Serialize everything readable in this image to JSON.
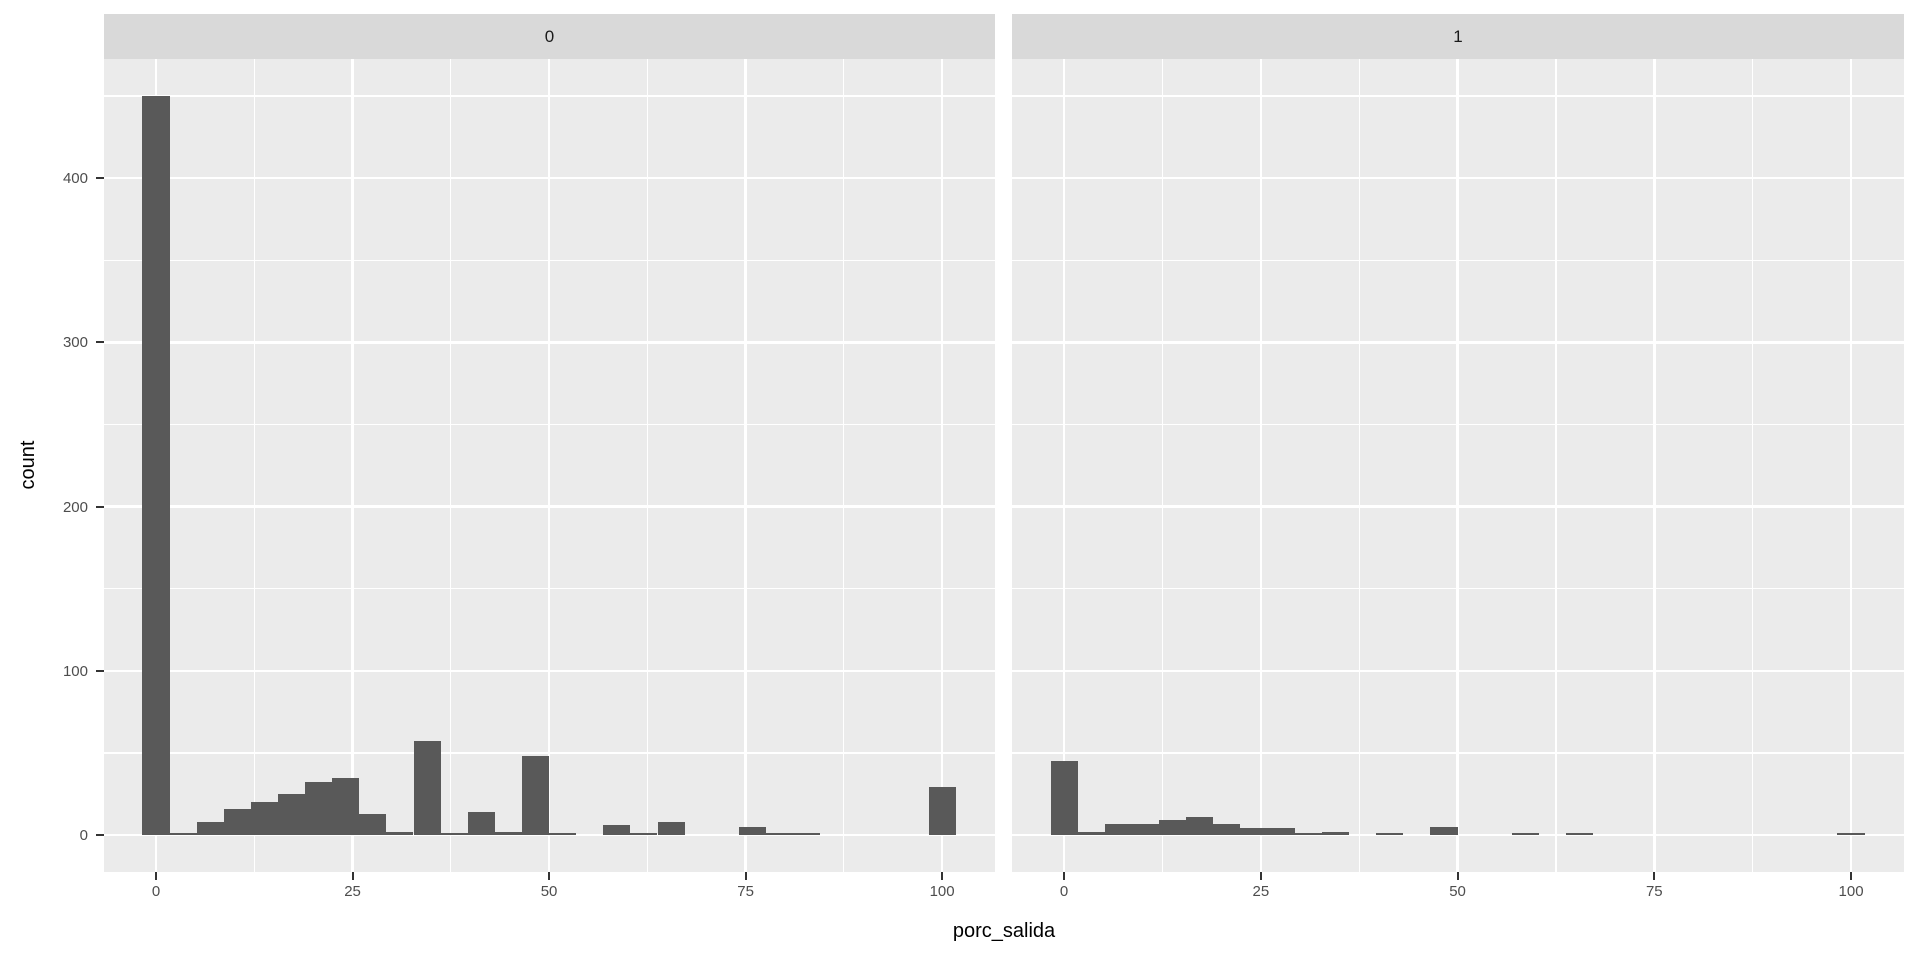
{
  "figure": {
    "background": "#ffffff"
  },
  "chart_data": {
    "type": "bar",
    "subtype": "faceted-histogram",
    "title": "",
    "xlabel": "porc_salida",
    "ylabel": "count",
    "facet_labels": [
      "0",
      "1"
    ],
    "bin_width": 3.448,
    "bin_centers": [
      0,
      3.45,
      6.9,
      10.34,
      13.79,
      17.24,
      20.69,
      24.14,
      27.59,
      31.03,
      34.48,
      37.93,
      41.38,
      44.83,
      48.28,
      51.72,
      55.17,
      58.62,
      62.07,
      65.52,
      68.97,
      72.41,
      75.86,
      79.31,
      82.76,
      86.21,
      89.66,
      93.1,
      96.55,
      100
    ],
    "series": [
      {
        "name": "0",
        "counts": [
          450,
          1,
          8,
          16,
          20,
          25,
          32,
          35,
          13,
          2,
          57,
          1,
          14,
          2,
          48,
          1,
          0,
          6,
          1,
          8,
          0,
          0,
          5,
          1,
          1,
          0,
          0,
          0,
          0,
          29
        ]
      },
      {
        "name": "1",
        "counts": [
          45,
          2,
          7,
          7,
          9,
          11,
          7,
          4,
          4,
          1,
          2,
          0,
          1,
          0,
          5,
          0,
          0,
          1,
          0,
          1,
          0,
          0,
          0,
          0,
          0,
          0,
          0,
          0,
          0,
          1
        ]
      }
    ],
    "x_ticks": [
      0,
      25,
      50,
      75,
      100
    ],
    "x_minor_gridlines": [
      12.5,
      37.5,
      62.5,
      87.5
    ],
    "y_ticks": [
      0,
      100,
      200,
      300,
      400
    ],
    "y_minor_gridlines": [
      50,
      150,
      250,
      350,
      450
    ],
    "xlim": [
      -6.62,
      106.73
    ],
    "ylim": [
      -22.5,
      472.5
    ],
    "grid": "on",
    "legend": "none",
    "colors": {
      "bar": "#595959",
      "panel_bg": "#ebebeb",
      "strip_bg": "#d9d9d9",
      "strip_text": "#1a1a1a",
      "gridline": "#ffffff",
      "tick_mark": "#333333",
      "tick_label": "#4d4d4d",
      "axis_title": "#000000"
    }
  }
}
